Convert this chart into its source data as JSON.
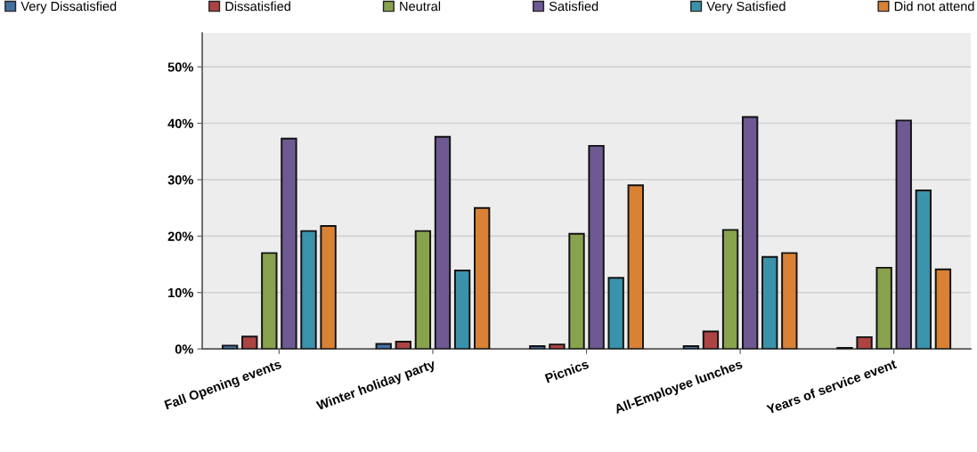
{
  "chart_data": {
    "type": "bar",
    "categories": [
      "Fall Opening events",
      "Winter holiday party",
      "Picnics",
      "All-Employee lunches",
      "Years of service event"
    ],
    "series": [
      {
        "name": "Very Dissatisfied",
        "color": "#4470a0",
        "values": [
          0.6,
          0.9,
          0.5,
          0.5,
          0.2
        ]
      },
      {
        "name": "Dissatisfied",
        "color": "#ad4444",
        "values": [
          2.2,
          1.3,
          0.8,
          3.1,
          2.1
        ]
      },
      {
        "name": "Neutral",
        "color": "#88a24e",
        "values": [
          17.0,
          20.9,
          20.4,
          21.1,
          14.4
        ]
      },
      {
        "name": "Satisfied",
        "color": "#6e5992",
        "values": [
          37.3,
          37.6,
          36.0,
          41.1,
          40.5
        ]
      },
      {
        "name": "Very Satisfied",
        "color": "#3a92ab",
        "values": [
          20.9,
          13.9,
          12.6,
          16.3,
          28.1
        ]
      },
      {
        "name": "Did not attend",
        "color": "#d98236",
        "values": [
          21.8,
          25.0,
          29.0,
          17.0,
          14.1
        ]
      }
    ],
    "ylim": [
      0,
      56
    ],
    "yticks": [
      {
        "value": 0,
        "label": "0%"
      },
      {
        "value": 10,
        "label": "10%"
      },
      {
        "value": 20,
        "label": "20%"
      },
      {
        "value": 30,
        "label": "30%"
      },
      {
        "value": 40,
        "label": "40%"
      },
      {
        "value": 50,
        "label": "50%"
      }
    ],
    "grid": "y",
    "legend": "top"
  }
}
